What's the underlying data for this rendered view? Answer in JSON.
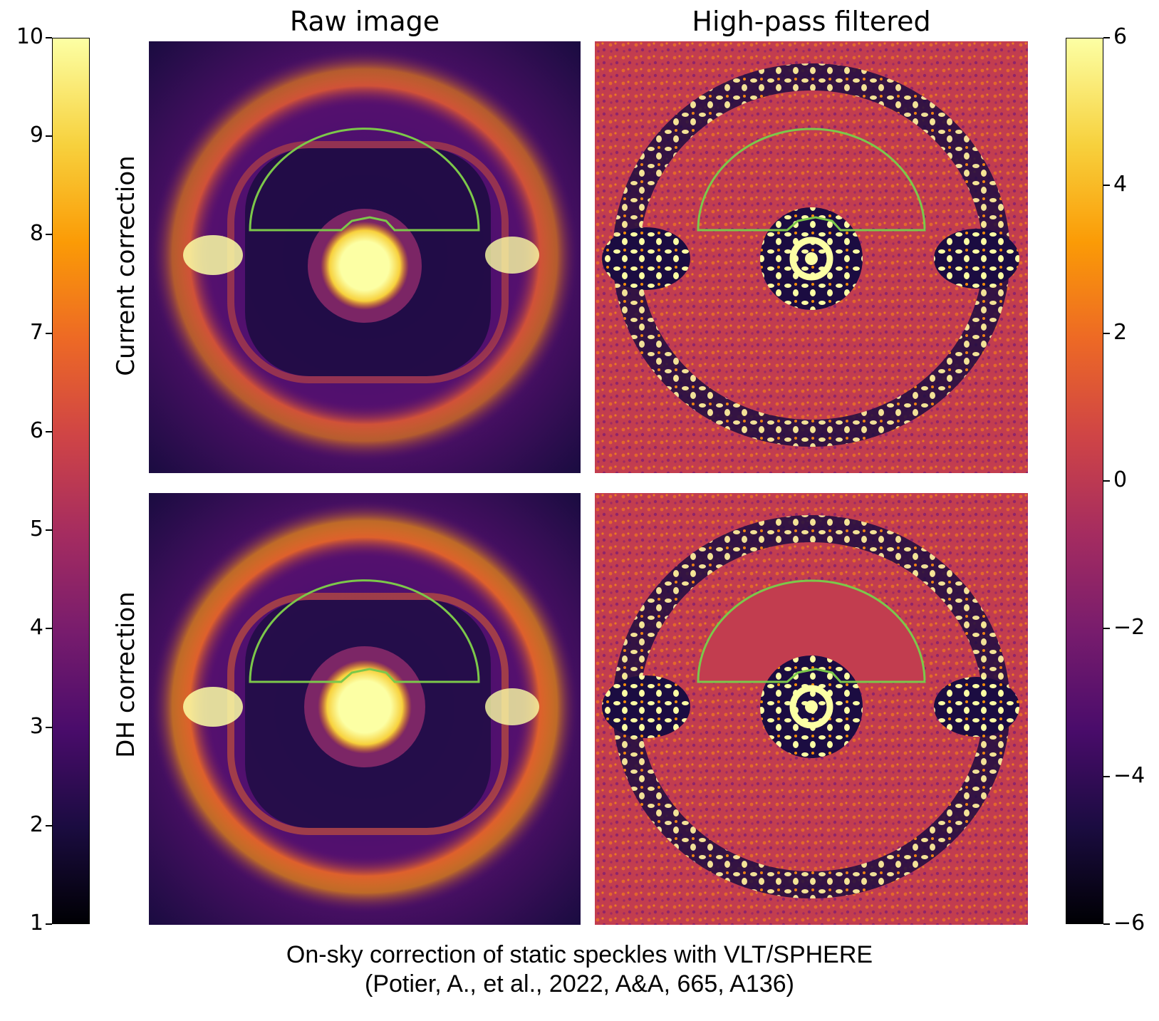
{
  "column_titles": [
    "Raw image",
    "High-pass filtered"
  ],
  "row_labels": [
    "Current correction",
    "DH correction"
  ],
  "left_colorbar": {
    "ticks": [
      "10",
      "9",
      "8",
      "7",
      "6",
      "5",
      "4",
      "3",
      "2",
      "1"
    ],
    "min": 1,
    "max": 10
  },
  "right_colorbar": {
    "ticks": [
      "6",
      "4",
      "2",
      "0",
      "−2",
      "−4",
      "−6"
    ],
    "min": -6,
    "max": 6
  },
  "caption": {
    "line1": "On-sky correction of static speckles with VLT/SPHERE",
    "line2": "(Potier, A., et al., 2022, A&A, 665, A136)"
  },
  "colors": {
    "dark_hole_outline": "#7cc84a",
    "inferno_dark": "#000004",
    "inferno_purple": "#57106e",
    "inferno_red": "#bc3754",
    "inferno_orange": "#f98e09",
    "inferno_yellow": "#fcffa4"
  }
}
